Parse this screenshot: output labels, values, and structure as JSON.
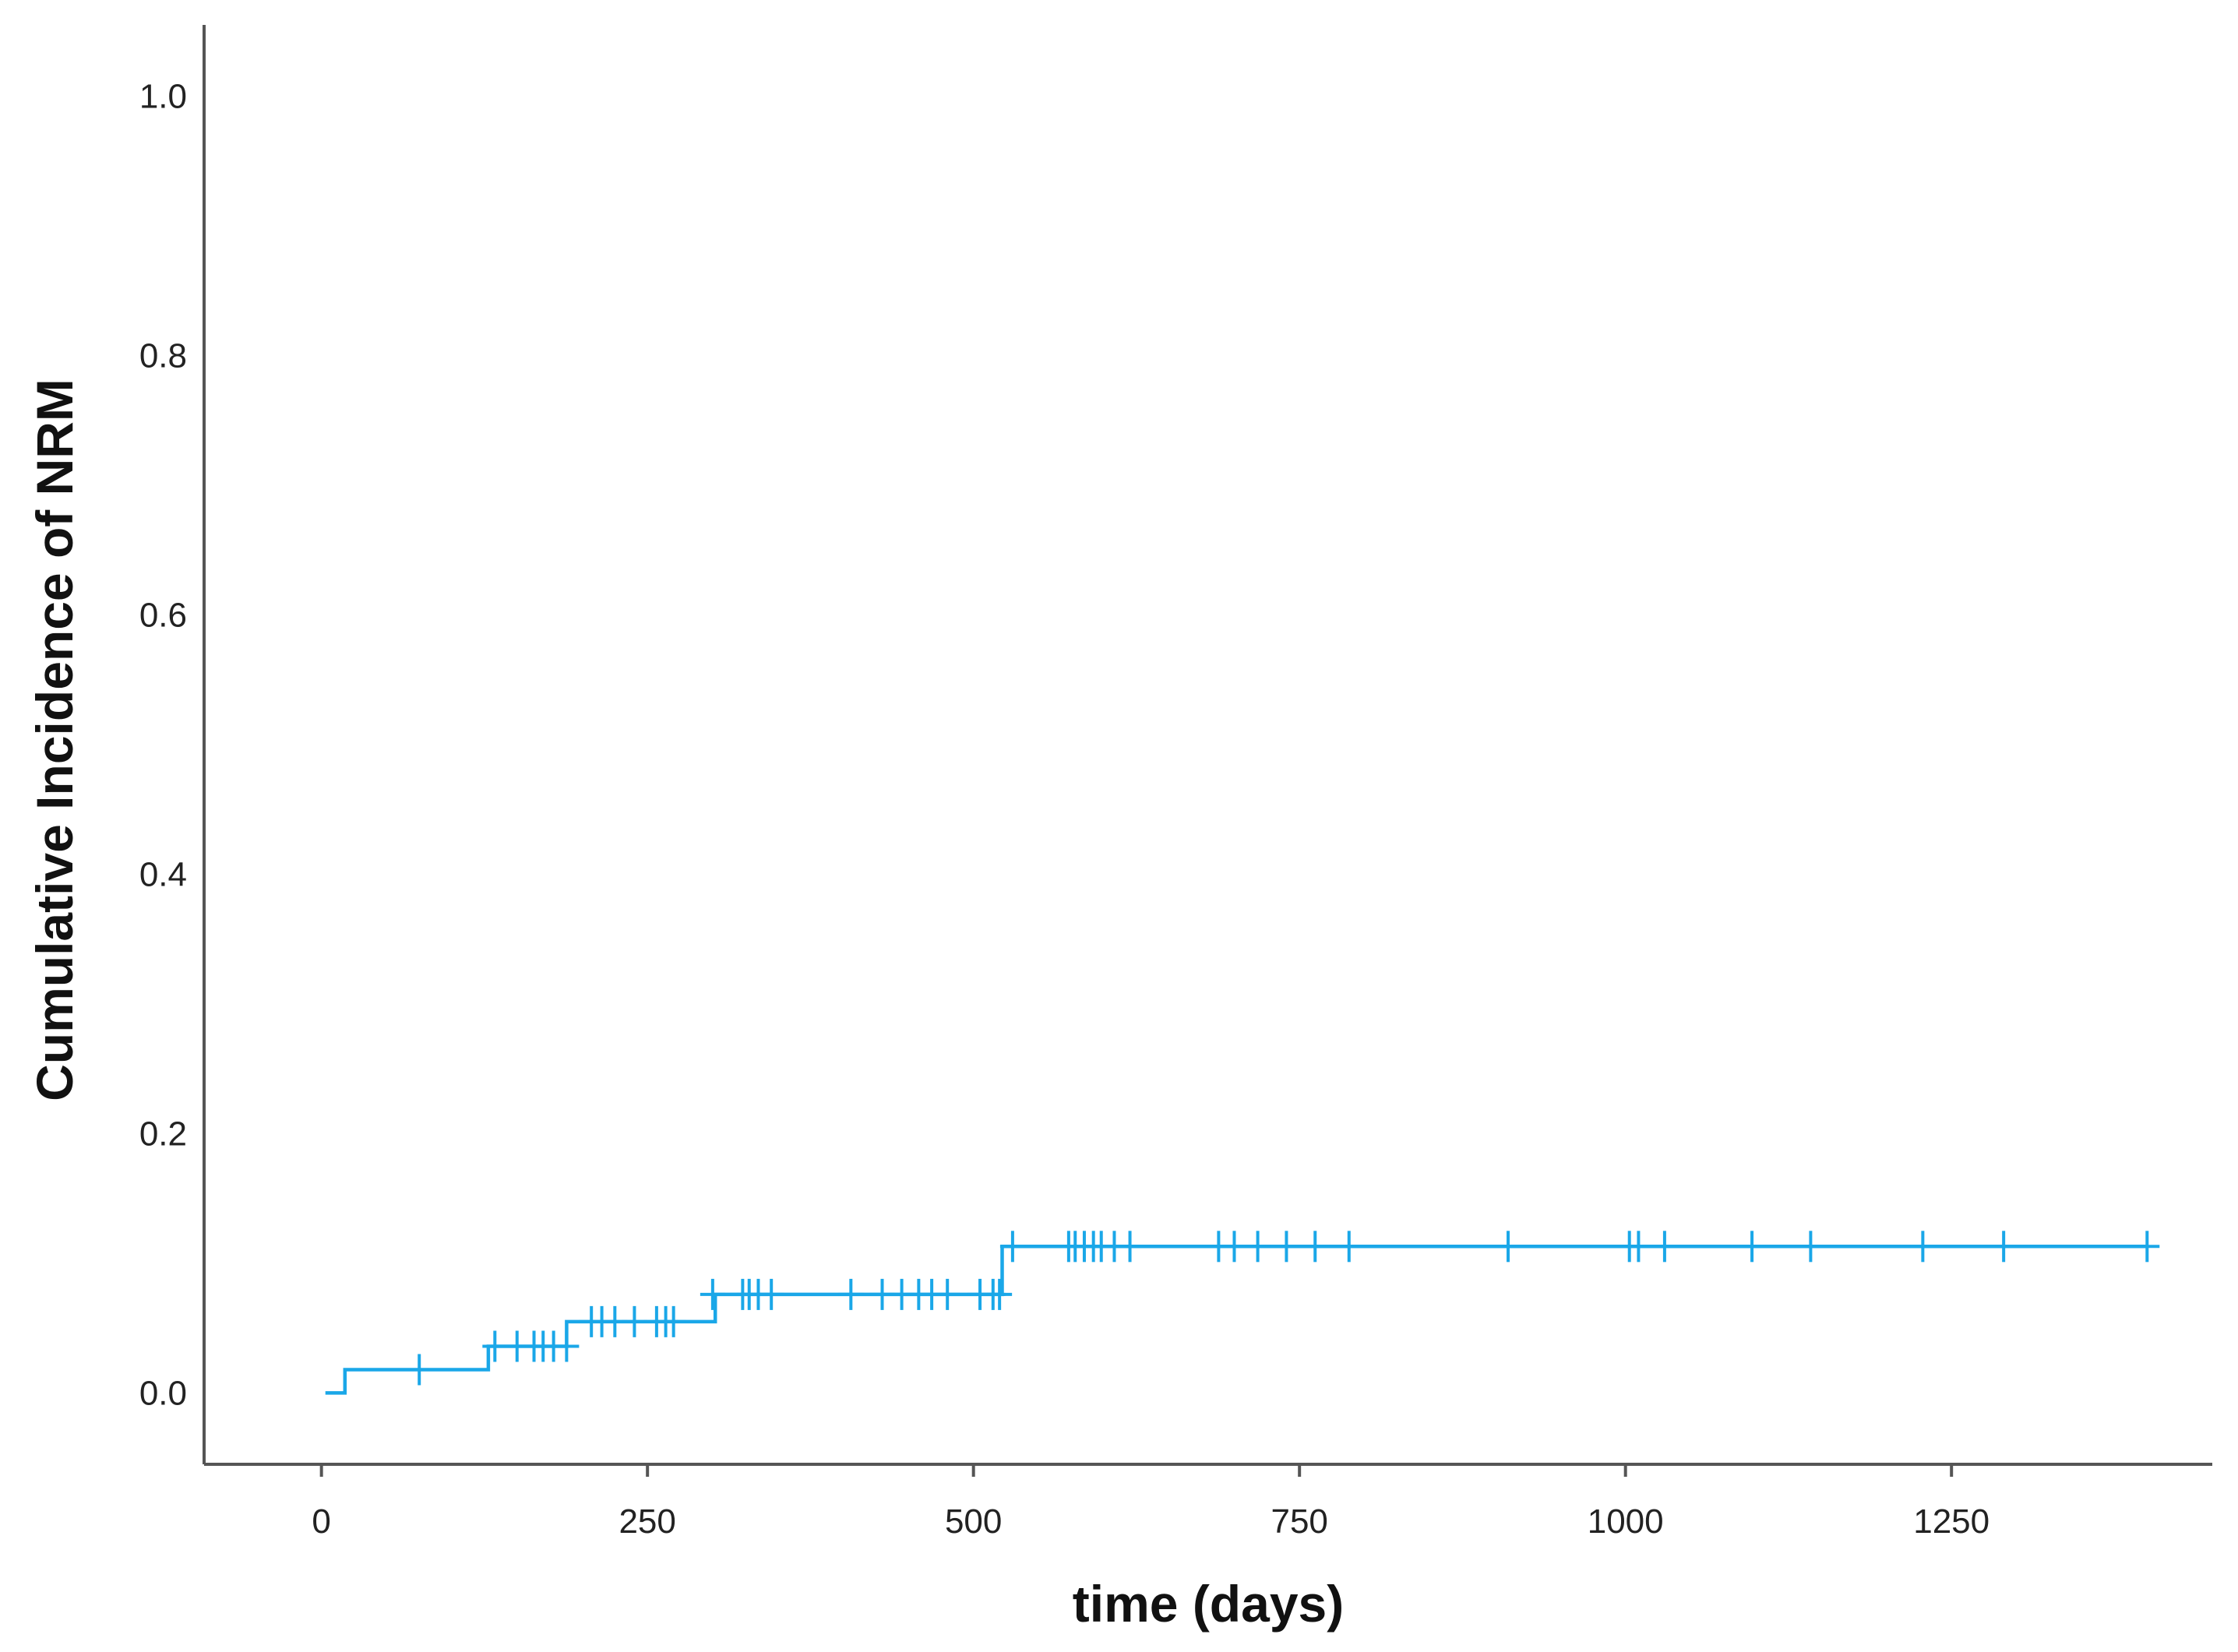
{
  "chart_data": {
    "type": "line",
    "title": "",
    "xlabel": "time (days)",
    "ylabel": "Cumulative Incidence of NRM",
    "xlim": [
      -90,
      1450
    ],
    "ylim": [
      -0.055,
      1.055
    ],
    "x_ticks": [
      0,
      250,
      500,
      750,
      1000,
      1250
    ],
    "y_ticks": [
      0.0,
      0.2,
      0.4,
      0.6,
      0.8,
      1.0
    ],
    "x_tick_labels": [
      "0",
      "250",
      "500",
      "750",
      "1000",
      "1250"
    ],
    "y_tick_labels": [
      "0.0",
      "0.2",
      "0.4",
      "0.6",
      "0.8",
      "1.0"
    ],
    "grid": false,
    "legend": "none",
    "series": [
      {
        "color": "#1aa7e8",
        "step": true,
        "x": [
          3,
          18,
          18,
          128,
          128,
          188,
          188,
          302,
          302,
          522,
          522,
          1400
        ],
        "y": [
          0.0,
          0.0,
          0.018,
          0.018,
          0.036,
          0.036,
          0.055,
          0.055,
          0.076,
          0.076,
          0.113,
          0.113
        ],
        "censor_marks": {
          "x": [
            75,
            133,
            150,
            163,
            170,
            178,
            188,
            207,
            215,
            225,
            240,
            257,
            264,
            270,
            300,
            323,
            328,
            335,
            345,
            406,
            430,
            445,
            458,
            468,
            480,
            505,
            515,
            520,
            530,
            573,
            578,
            585,
            592,
            598,
            608,
            620,
            688,
            700,
            718,
            740,
            762,
            788,
            910,
            1003,
            1010,
            1030,
            1097,
            1142,
            1228,
            1290,
            1400
          ],
          "y": [
            0.018,
            0.036,
            0.036,
            0.036,
            0.036,
            0.036,
            0.036,
            0.055,
            0.055,
            0.055,
            0.055,
            0.055,
            0.055,
            0.055,
            0.076,
            0.076,
            0.076,
            0.076,
            0.076,
            0.076,
            0.076,
            0.076,
            0.076,
            0.076,
            0.076,
            0.076,
            0.076,
            0.076,
            0.113,
            0.113,
            0.113,
            0.113,
            0.113,
            0.113,
            0.113,
            0.113,
            0.113,
            0.113,
            0.113,
            0.113,
            0.113,
            0.113,
            0.113,
            0.113,
            0.113,
            0.113,
            0.113,
            0.113,
            0.113,
            0.113,
            0.113
          ]
        }
      }
    ]
  }
}
